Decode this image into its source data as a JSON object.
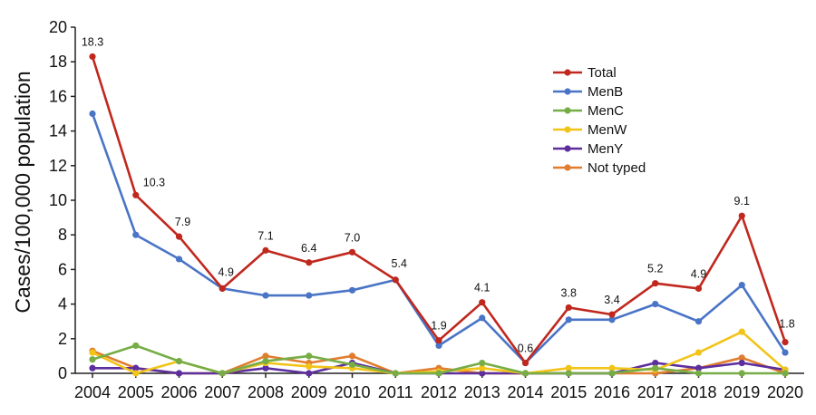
{
  "chart_data": {
    "type": "line",
    "ylabel": "Cases/100,000 population",
    "xlabel": "",
    "title": "",
    "ylim": [
      0,
      20
    ],
    "yticks": [
      0,
      2,
      4,
      6,
      8,
      10,
      12,
      14,
      16,
      18,
      20
    ],
    "x": [
      "2004",
      "2005",
      "2006",
      "2007",
      "2008",
      "2009",
      "2010",
      "2011",
      "2012",
      "2013",
      "2014",
      "2015",
      "2016",
      "2017",
      "2018",
      "2019",
      "2020"
    ],
    "legend_position": "top-right",
    "series": [
      {
        "name": "Total",
        "color": "#c0281e",
        "values": [
          18.3,
          10.3,
          7.9,
          4.9,
          7.1,
          6.4,
          7.0,
          5.4,
          1.9,
          4.1,
          0.6,
          3.8,
          3.4,
          5.2,
          4.9,
          9.1,
          1.8
        ]
      },
      {
        "name": "MenB",
        "color": "#4a74c6",
        "values": [
          15.0,
          8.0,
          6.6,
          4.9,
          4.5,
          4.5,
          4.8,
          5.4,
          1.6,
          3.2,
          0.6,
          3.1,
          3.1,
          4.0,
          3.0,
          5.1,
          1.2
        ]
      },
      {
        "name": "MenC",
        "color": "#76ad46",
        "values": [
          0.8,
          1.6,
          0.7,
          0.0,
          0.7,
          1.0,
          0.5,
          0.0,
          0.0,
          0.6,
          0.0,
          0.0,
          0.0,
          0.3,
          0.0,
          0.0,
          0.0
        ]
      },
      {
        "name": "MenW",
        "color": "#f2c418",
        "values": [
          1.2,
          0.0,
          0.7,
          0.0,
          0.6,
          0.4,
          0.3,
          0.0,
          0.1,
          0.3,
          0.0,
          0.3,
          0.3,
          0.2,
          1.2,
          2.4,
          0.2
        ]
      },
      {
        "name": "MenY",
        "color": "#5c2e9e",
        "values": [
          0.3,
          0.3,
          0.0,
          0.0,
          0.3,
          0.0,
          0.6,
          0.0,
          0.0,
          0.0,
          0.0,
          0.0,
          0.0,
          0.6,
          0.3,
          0.6,
          0.2
        ]
      },
      {
        "name": "Not typed",
        "color": "#e17d2e",
        "values": [
          1.3,
          0.3,
          0.0,
          0.0,
          1.0,
          0.6,
          1.0,
          0.0,
          0.3,
          0.0,
          0.0,
          0.0,
          0.0,
          0.0,
          0.3,
          0.9,
          0.0
        ]
      }
    ],
    "data_labels": [
      "18.3",
      "10.3",
      "7.9",
      "4.9",
      "7.1",
      "6.4",
      "7.0",
      "5.4",
      "1.9",
      "4.1",
      "0.6",
      "3.8",
      "3.4",
      "5.2",
      "4.9",
      "9.1",
      "1.8"
    ]
  }
}
